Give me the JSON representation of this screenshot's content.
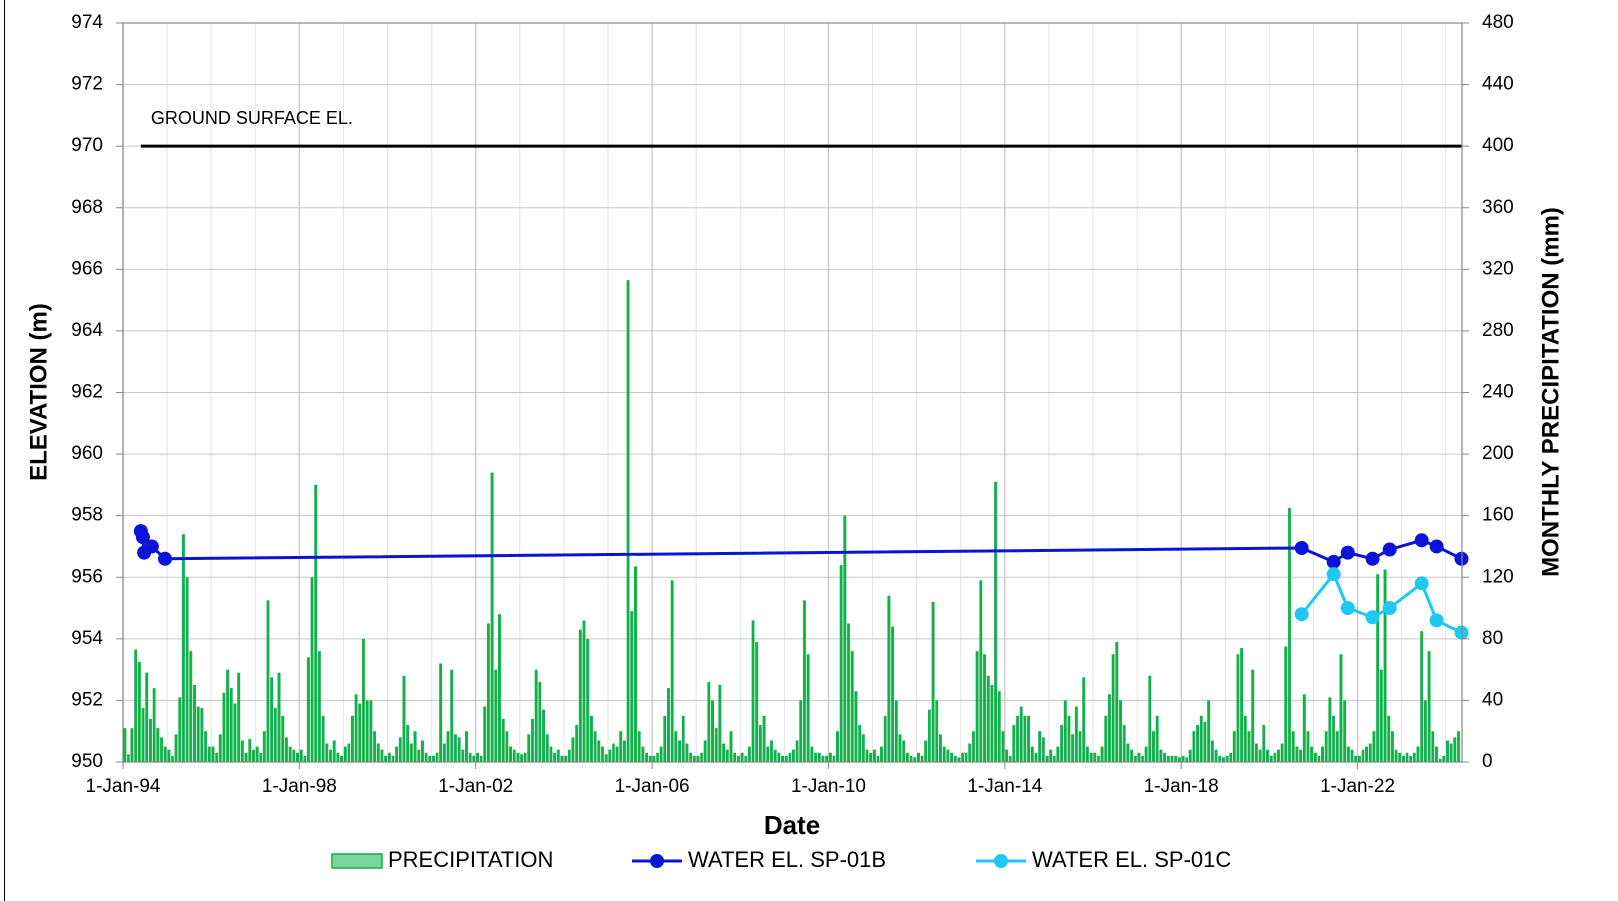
{
  "chart_data": {
    "type": "combo",
    "xlabel": "Date",
    "ylabel": "ELEVATION (m)",
    "y2label": "MONTHLY PRECIPITATION (mm)",
    "xlim": [
      "1994-01-01",
      "2024-05-15"
    ],
    "xticks": [
      {
        "value": "1994-01-01",
        "label": "1-Jan-94"
      },
      {
        "value": "1998-01-01",
        "label": "1-Jan-98"
      },
      {
        "value": "2002-01-01",
        "label": "1-Jan-02"
      },
      {
        "value": "2006-01-01",
        "label": "1-Jan-06"
      },
      {
        "value": "2010-01-01",
        "label": "1-Jan-10"
      },
      {
        "value": "2014-01-01",
        "label": "1-Jan-14"
      },
      {
        "value": "2018-01-01",
        "label": "1-Jan-18"
      },
      {
        "value": "2022-01-01",
        "label": "1-Jan-22"
      }
    ],
    "xminorticks": [
      "1995-01-01",
      "1996-01-01",
      "1997-01-01",
      "1999-01-01",
      "2000-01-01",
      "2001-01-01",
      "2003-01-01",
      "2004-01-01",
      "2005-01-01",
      "2007-01-01",
      "2008-01-01",
      "2009-01-01",
      "2011-01-01",
      "2012-01-01",
      "2013-01-01",
      "2015-01-01",
      "2016-01-01",
      "2017-01-01",
      "2019-01-01",
      "2020-01-01",
      "2021-01-01",
      "2023-01-01",
      "2024-01-01"
    ],
    "ylim": [
      950,
      974
    ],
    "yticks": [
      950,
      952,
      954,
      956,
      958,
      960,
      962,
      964,
      966,
      968,
      970,
      972,
      974
    ],
    "y2lim": [
      0,
      480
    ],
    "y2ticks": [
      0,
      40,
      80,
      120,
      160,
      200,
      240,
      280,
      320,
      360,
      400,
      440,
      480
    ],
    "grid": true,
    "legend": "bottom",
    "reference_line": {
      "label": "GROUND SURFACE EL.",
      "value": 970,
      "x": [
        "1994-05-29",
        "2024-05-11"
      ],
      "color": "#000000"
    },
    "series": [
      {
        "name": "PRECIPITATION",
        "type": "bar",
        "axis": "y2",
        "color": "#12b04a",
        "x": [
          "1994-01",
          "1994-02",
          "1994-03",
          "1994-04",
          "1994-05",
          "1994-06",
          "1994-07",
          "1994-08",
          "1994-09",
          "1994-10",
          "1994-11",
          "1994-12",
          "1995-01",
          "1995-02",
          "1995-03",
          "1995-04",
          "1995-05",
          "1995-06",
          "1995-07",
          "1995-08",
          "1995-09",
          "1995-10",
          "1995-11",
          "1995-12",
          "1996-01",
          "1996-02",
          "1996-03",
          "1996-04",
          "1996-05",
          "1996-06",
          "1996-07",
          "1996-08",
          "1996-09",
          "1996-10",
          "1996-11",
          "1996-12",
          "1997-01",
          "1997-02",
          "1997-03",
          "1997-04",
          "1997-05",
          "1997-06",
          "1997-07",
          "1997-08",
          "1997-09",
          "1997-10",
          "1997-11",
          "1997-12",
          "1998-01",
          "1998-02",
          "1998-03",
          "1998-04",
          "1998-05",
          "1998-06",
          "1998-07",
          "1998-08",
          "1998-09",
          "1998-10",
          "1998-11",
          "1998-12",
          "1999-01",
          "1999-02",
          "1999-03",
          "1999-04",
          "1999-05",
          "1999-06",
          "1999-07",
          "1999-08",
          "1999-09",
          "1999-10",
          "1999-11",
          "1999-12",
          "2000-01",
          "2000-02",
          "2000-03",
          "2000-04",
          "2000-05",
          "2000-06",
          "2000-07",
          "2000-08",
          "2000-09",
          "2000-10",
          "2000-11",
          "2000-12",
          "2001-01",
          "2001-02",
          "2001-03",
          "2001-04",
          "2001-05",
          "2001-06",
          "2001-07",
          "2001-08",
          "2001-09",
          "2001-10",
          "2001-11",
          "2001-12",
          "2002-01",
          "2002-02",
          "2002-03",
          "2002-04",
          "2002-05",
          "2002-06",
          "2002-07",
          "2002-08",
          "2002-09",
          "2002-10",
          "2002-11",
          "2002-12",
          "2003-01",
          "2003-02",
          "2003-03",
          "2003-04",
          "2003-05",
          "2003-06",
          "2003-07",
          "2003-08",
          "2003-09",
          "2003-10",
          "2003-11",
          "2003-12",
          "2004-01",
          "2004-02",
          "2004-03",
          "2004-04",
          "2004-05",
          "2004-06",
          "2004-07",
          "2004-08",
          "2004-09",
          "2004-10",
          "2004-11",
          "2004-12",
          "2005-01",
          "2005-02",
          "2005-03",
          "2005-04",
          "2005-05",
          "2005-06",
          "2005-07",
          "2005-08",
          "2005-09",
          "2005-10",
          "2005-11",
          "2005-12",
          "2006-01",
          "2006-02",
          "2006-03",
          "2006-04",
          "2006-05",
          "2006-06",
          "2006-07",
          "2006-08",
          "2006-09",
          "2006-10",
          "2006-11",
          "2006-12",
          "2007-01",
          "2007-02",
          "2007-03",
          "2007-04",
          "2007-05",
          "2007-06",
          "2007-07",
          "2007-08",
          "2007-09",
          "2007-10",
          "2007-11",
          "2007-12",
          "2008-01",
          "2008-02",
          "2008-03",
          "2008-04",
          "2008-05",
          "2008-06",
          "2008-07",
          "2008-08",
          "2008-09",
          "2008-10",
          "2008-11",
          "2008-12",
          "2009-01",
          "2009-02",
          "2009-03",
          "2009-04",
          "2009-05",
          "2009-06",
          "2009-07",
          "2009-08",
          "2009-09",
          "2009-10",
          "2009-11",
          "2009-12",
          "2010-01",
          "2010-02",
          "2010-03",
          "2010-04",
          "2010-05",
          "2010-06",
          "2010-07",
          "2010-08",
          "2010-09",
          "2010-10",
          "2010-11",
          "2010-12",
          "2011-01",
          "2011-02",
          "2011-03",
          "2011-04",
          "2011-05",
          "2011-06",
          "2011-07",
          "2011-08",
          "2011-09",
          "2011-10",
          "2011-11",
          "2011-12",
          "2012-01",
          "2012-02",
          "2012-03",
          "2012-04",
          "2012-05",
          "2012-06",
          "2012-07",
          "2012-08",
          "2012-09",
          "2012-10",
          "2012-11",
          "2012-12",
          "2013-01",
          "2013-02",
          "2013-03",
          "2013-04",
          "2013-05",
          "2013-06",
          "2013-07",
          "2013-08",
          "2013-09",
          "2013-10",
          "2013-11",
          "2013-12",
          "2014-01",
          "2014-02",
          "2014-03",
          "2014-04",
          "2014-05",
          "2014-06",
          "2014-07",
          "2014-08",
          "2014-09",
          "2014-10",
          "2014-11",
          "2014-12",
          "2015-01",
          "2015-02",
          "2015-03",
          "2015-04",
          "2015-05",
          "2015-06",
          "2015-07",
          "2015-08",
          "2015-09",
          "2015-10",
          "2015-11",
          "2015-12",
          "2016-01",
          "2016-02",
          "2016-03",
          "2016-04",
          "2016-05",
          "2016-06",
          "2016-07",
          "2016-08",
          "2016-09",
          "2016-10",
          "2016-11",
          "2016-12",
          "2017-01",
          "2017-02",
          "2017-03",
          "2017-04",
          "2017-05",
          "2017-06",
          "2017-07",
          "2017-08",
          "2017-09",
          "2017-10",
          "2017-11",
          "2017-12",
          "2018-01",
          "2018-02",
          "2018-03",
          "2018-04",
          "2018-05",
          "2018-06",
          "2018-07",
          "2018-08",
          "2018-09",
          "2018-10",
          "2018-11",
          "2018-12",
          "2019-01",
          "2019-02",
          "2019-03",
          "2019-04",
          "2019-05",
          "2019-06",
          "2019-07",
          "2019-08",
          "2019-09",
          "2019-10",
          "2019-11",
          "2019-12",
          "2020-01",
          "2020-02",
          "2020-03",
          "2020-04",
          "2020-05",
          "2020-06",
          "2020-07",
          "2020-08",
          "2020-09",
          "2020-10",
          "2020-11",
          "2020-12",
          "2021-01",
          "2021-02",
          "2021-03",
          "2021-04",
          "2021-05",
          "2021-06",
          "2021-07",
          "2021-08",
          "2021-09",
          "2021-10",
          "2021-11",
          "2021-12",
          "2022-01",
          "2022-02",
          "2022-03",
          "2022-04",
          "2022-05",
          "2022-06",
          "2022-07",
          "2022-08",
          "2022-09",
          "2022-10",
          "2022-11",
          "2022-12",
          "2023-01",
          "2023-02",
          "2023-03",
          "2023-04",
          "2023-05",
          "2023-06",
          "2023-07",
          "2023-08",
          "2023-09",
          "2023-10",
          "2023-11",
          "2023-12",
          "2024-01",
          "2024-02",
          "2024-03",
          "2024-04"
        ],
        "values": [
          22,
          5,
          22,
          73,
          65,
          35,
          58,
          28,
          48,
          22,
          16,
          10,
          8,
          4,
          18,
          42,
          148,
          120,
          72,
          50,
          36,
          35,
          20,
          10,
          10,
          6,
          18,
          45,
          60,
          48,
          38,
          58,
          14,
          6,
          15,
          8,
          10,
          6,
          20,
          105,
          55,
          35,
          58,
          30,
          16,
          10,
          8,
          6,
          8,
          4,
          68,
          120,
          180,
          72,
          30,
          12,
          8,
          14,
          6,
          4,
          10,
          12,
          30,
          44,
          38,
          80,
          40,
          40,
          20,
          12,
          8,
          4,
          6,
          4,
          10,
          16,
          56,
          24,
          12,
          20,
          8,
          14,
          6,
          4,
          4,
          6,
          64,
          12,
          20,
          60,
          18,
          16,
          8,
          20,
          6,
          4,
          6,
          4,
          36,
          90,
          188,
          60,
          96,
          28,
          20,
          10,
          8,
          6,
          5,
          6,
          18,
          28,
          60,
          52,
          34,
          18,
          10,
          6,
          8,
          4,
          4,
          8,
          16,
          24,
          86,
          92,
          80,
          30,
          20,
          14,
          10,
          5,
          8,
          12,
          10,
          20,
          14,
          313,
          98,
          127,
          20,
          10,
          6,
          4,
          4,
          6,
          10,
          30,
          48,
          118,
          20,
          14,
          30,
          12,
          6,
          4,
          4,
          6,
          14,
          52,
          40,
          22,
          50,
          12,
          8,
          20,
          6,
          4,
          6,
          4,
          10,
          92,
          78,
          24,
          30,
          10,
          14,
          8,
          6,
          4,
          4,
          6,
          8,
          14,
          40,
          105,
          70,
          10,
          6,
          6,
          4,
          4,
          6,
          4,
          20,
          128,
          160,
          90,
          72,
          46,
          24,
          18,
          8,
          6,
          8,
          4,
          10,
          30,
          108,
          88,
          40,
          18,
          14,
          6,
          4,
          3,
          6,
          4,
          14,
          34,
          104,
          40,
          18,
          10,
          8,
          6,
          4,
          3,
          6,
          6,
          12,
          20,
          72,
          118,
          70,
          56,
          50,
          182,
          46,
          20,
          8,
          4,
          24,
          30,
          36,
          30,
          30,
          10,
          6,
          20,
          16,
          4,
          8,
          4,
          10,
          24,
          40,
          30,
          18,
          36,
          20,
          55,
          10,
          6,
          6,
          4,
          10,
          30,
          44,
          70,
          78,
          40,
          24,
          12,
          8,
          4,
          6,
          4,
          10,
          56,
          20,
          30,
          8,
          6,
          4,
          4,
          4,
          3,
          4,
          3,
          8,
          20,
          24,
          30,
          26,
          40,
          14,
          8,
          4,
          3,
          4,
          6,
          20,
          70,
          74,
          30,
          20,
          60,
          12,
          8,
          24,
          8,
          4,
          6,
          8,
          12,
          75,
          165,
          20,
          10,
          8,
          44,
          20,
          10,
          6,
          4,
          10,
          20,
          42,
          30,
          20,
          70,
          40,
          10,
          8,
          4,
          4,
          8,
          10,
          12,
          20,
          122,
          60,
          125,
          30,
          20,
          8,
          6,
          4,
          6,
          4,
          6,
          10,
          85,
          40,
          72,
          20,
          10,
          2,
          4,
          14,
          12,
          16,
          20
        ]
      },
      {
        "name": "WATER EL. SP-01B",
        "type": "line",
        "color": "#0a14d8",
        "x": [
          "1994-05-29",
          "1994-06-15",
          "1994-06-25",
          "1994-08-28",
          "1994-12-15",
          "2020-09-25",
          "2021-06-17",
          "2021-10-12",
          "2022-05-05",
          "2022-09-24",
          "2023-06-16",
          "2023-10-18",
          "2024-05-11"
        ],
        "values": [
          957.5,
          957.3,
          956.8,
          957.0,
          956.6,
          956.95,
          956.5,
          956.8,
          956.6,
          956.9,
          957.2,
          957.0,
          956.6
        ]
      },
      {
        "name": "WATER EL. SP-01C",
        "type": "line",
        "color": "#1ec8f0",
        "x": [
          "2020-09-25",
          "2021-06-17",
          "2021-10-12",
          "2022-05-05",
          "2022-09-24",
          "2023-06-16",
          "2023-10-18",
          "2024-05-11"
        ],
        "values": [
          954.8,
          956.1,
          955.0,
          954.7,
          955.0,
          955.8,
          954.6,
          954.2
        ]
      }
    ]
  }
}
